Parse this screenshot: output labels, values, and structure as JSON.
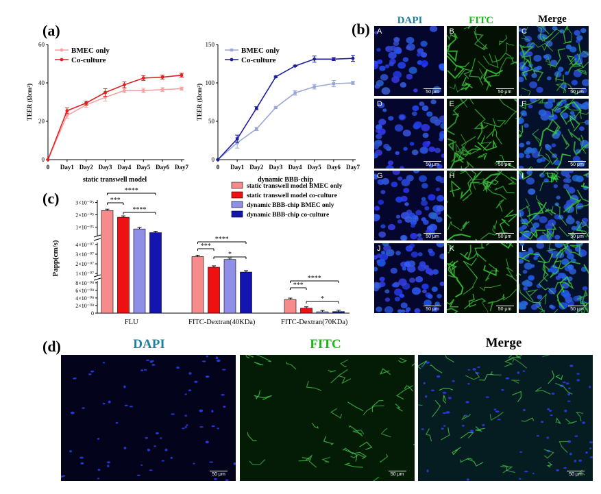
{
  "colors": {
    "bmec_line": "#f4a3a3",
    "coculture_line": "#e02020",
    "chip_bmec_line": "#9aa6d4",
    "chip_coculture_line": "#1c1c9a",
    "bar_static_bmec": "#f58b8b",
    "bar_static_co": "#ee1111",
    "bar_chip_bmec": "#8f8fe8",
    "bar_chip_co": "#1414b0",
    "dapi_text": "#1f7f9f",
    "fitc_text": "#18b818"
  },
  "panels": {
    "a": "(a)",
    "b": "(b)",
    "c": "(c)",
    "d": "(d)"
  },
  "panel_b": {
    "headers": [
      "DAPI",
      "FITC",
      "Merge"
    ],
    "tile_letters": [
      "A",
      "B",
      "C",
      "D",
      "E",
      "F",
      "G",
      "H",
      "I",
      "J",
      "K",
      "L"
    ],
    "scale_label": "50 μm"
  },
  "panel_d": {
    "headers": [
      "DAPI",
      "FITC",
      "Merge"
    ],
    "scale_label": "50 μm"
  },
  "chart_data": [
    {
      "type": "line",
      "title": "",
      "xlabel": "static transwell model",
      "ylabel": "TEER (Ωcm²)",
      "categories": [
        "0",
        "Day1",
        "Day2",
        "Day3",
        "Day4",
        "Day5",
        "Day6",
        "Day7"
      ],
      "ylim": [
        0,
        60
      ],
      "yticks": [
        0,
        20,
        40,
        60
      ],
      "legend_position": "top-left",
      "series": [
        {
          "name": "BMEC only",
          "values": [
            0,
            23,
            28.5,
            32.5,
            36,
            36,
            36.5,
            37
          ],
          "errors": [
            0,
            1.5,
            1.2,
            2,
            1.2,
            1.2,
            1,
            0.8
          ]
        },
        {
          "name": "Co-culture",
          "values": [
            0,
            25.5,
            29.5,
            35,
            39,
            42.5,
            43,
            44
          ],
          "errors": [
            0,
            1.5,
            1,
            2,
            1.5,
            1.2,
            1,
            1
          ]
        }
      ]
    },
    {
      "type": "line",
      "title": "",
      "xlabel": "dynamic BBB-chip",
      "ylabel": "TEER (Ωcm²)",
      "categories": [
        "0",
        "Day1",
        "Day2",
        "Day3",
        "Day4",
        "Day5",
        "Day6",
        "Day7"
      ],
      "ylim": [
        0,
        150
      ],
      "yticks": [
        0,
        50,
        100,
        150
      ],
      "legend_position": "top-left",
      "series": [
        {
          "name": "BMEC only",
          "values": [
            0,
            22,
            40,
            68,
            87,
            95,
            99,
            100
          ],
          "errors": [
            0,
            7,
            2,
            1,
            3,
            3,
            4,
            2
          ]
        },
        {
          "name": "Co-culture",
          "values": [
            0,
            27,
            67,
            108,
            122,
            131,
            131,
            132
          ],
          "errors": [
            0,
            5,
            2,
            1,
            1,
            4,
            2,
            4
          ]
        }
      ]
    },
    {
      "type": "bar",
      "title": "",
      "xlabel": "",
      "ylabel": "Papp(cm/s)",
      "categories": [
        "FLU",
        "FITC-Dextran(40KDa)",
        "FITC-Dextran(70KDa)"
      ],
      "legend_position": "top-right",
      "axis_segments": [
        {
          "ticks": [
            "1×10⁻⁰⁵",
            "2×10⁻⁰⁵",
            "3×10⁻⁰⁵"
          ],
          "range": [
            0,
            3e-05
          ]
        },
        {
          "ticks": [
            "1×10⁻⁰⁷",
            "2×10⁻⁰⁷",
            "3×10⁻⁰⁷",
            "4×10⁻⁰⁷"
          ],
          "range": [
            0,
            4e-07
          ]
        },
        {
          "ticks": [
            "0",
            "2×10⁻⁰⁸",
            "4×10⁻⁰⁸",
            "6×10⁻⁰⁸",
            "8×10⁻⁰⁸"
          ],
          "range": [
            0,
            8e-08
          ]
        }
      ],
      "series": [
        {
          "name": "static transwell model BMEC only",
          "values": [
            2.35e-05,
            2.75e-07,
            3.6e-08
          ]
        },
        {
          "name": "static transwell model co-culture",
          "values": [
            1.8e-05,
            1.65e-07,
            1.3e-08
          ]
        },
        {
          "name": "dynamic BBB-chip BMEC only",
          "values": [
            8.5e-06,
            2.45e-07,
            3.5e-09
          ]
        },
        {
          "name": "dynamic BBB-chip co-culture",
          "values": [
            5.5e-06,
            1.15e-07,
            4e-09
          ]
        }
      ],
      "annotations": [
        {
          "group": 0,
          "label": "***"
        },
        {
          "group": 0,
          "label": "****"
        },
        {
          "group": 0,
          "label": "****"
        },
        {
          "group": 1,
          "label": "***"
        },
        {
          "group": 1,
          "label": "****"
        },
        {
          "group": 1,
          "label": "*"
        },
        {
          "group": 2,
          "label": "***"
        },
        {
          "group": 2,
          "label": "****"
        },
        {
          "group": 2,
          "label": "*"
        }
      ]
    }
  ]
}
